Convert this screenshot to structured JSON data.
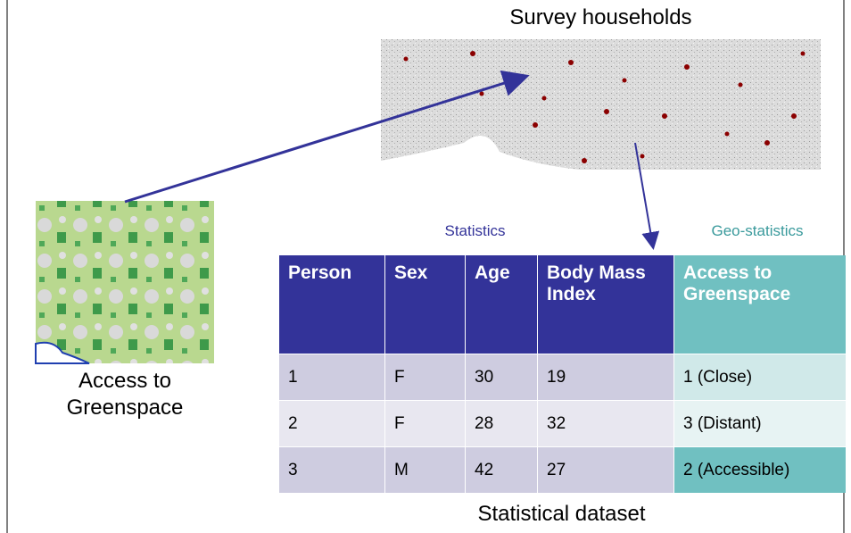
{
  "map_label": "Survey households",
  "inset_label": [
    "Access to",
    "Greenspace"
  ],
  "table": {
    "group_labels": [
      "Statistics",
      "Geo-statistics"
    ],
    "header": [
      "Person",
      "Sex",
      "Age",
      "Body Mass Index",
      "Access to Greenspace"
    ],
    "rows": [
      [
        "1",
        "F",
        "30",
        "19",
        "1 (Close)"
      ],
      [
        "2",
        "F",
        "28",
        "32",
        "3 (Distant)"
      ],
      [
        "3",
        "M",
        "42",
        "27",
        "2 (Accessible)"
      ]
    ]
  },
  "caption": "Statistical dataset"
}
